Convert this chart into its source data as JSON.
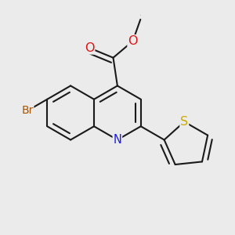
{
  "bg": "#ebebeb",
  "bond_color": "#1a1a1a",
  "lw": 1.5,
  "atom_colors": {
    "N": "#1a1aee",
    "O": "#dd1111",
    "S": "#ccaa00",
    "Br": "#aa5500"
  },
  "fs": 10.5,
  "fig_size": [
    3.0,
    3.0
  ],
  "dpi": 100,
  "s": 0.115
}
